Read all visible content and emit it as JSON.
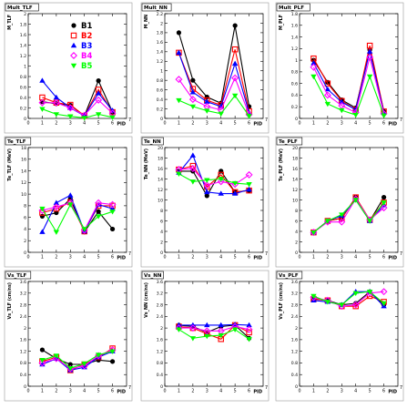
{
  "chart_data": [
    {
      "type": "line",
      "title": "Mult_TLF",
      "ylabel": "M_TLF",
      "xlabel": "PID",
      "xlim": [
        0,
        7
      ],
      "ylim": [
        0,
        2
      ],
      "xticks": [
        0,
        1,
        2,
        3,
        4,
        5,
        6
      ],
      "yticks": [
        0,
        0.2,
        0.4,
        0.6,
        0.8,
        1,
        1.2,
        1.4,
        1.6,
        1.8,
        2
      ],
      "ytick_labels": [
        "0",
        "0.2",
        "0.4",
        "0.6",
        "0.8",
        "1",
        "1.2",
        "1.4",
        "1.6",
        "1.8",
        "2"
      ],
      "x": [
        1,
        2,
        3,
        4,
        5,
        6
      ],
      "legend": "top-right",
      "series": [
        {
          "name": "B1",
          "values": [
            0.32,
            0.28,
            0.25,
            0.05,
            0.72,
            0.12
          ]
        },
        {
          "name": "B2",
          "values": [
            0.4,
            0.3,
            0.26,
            0.05,
            0.55,
            0.12
          ]
        },
        {
          "name": "B3",
          "values": [
            0.72,
            0.4,
            0.2,
            0.05,
            0.48,
            0.15
          ]
        },
        {
          "name": "B4",
          "values": [
            0.3,
            0.3,
            0.2,
            0.06,
            0.35,
            0.1
          ]
        },
        {
          "name": "B5",
          "values": [
            0.18,
            0.08,
            0.04,
            0.01,
            0.08,
            0.02
          ]
        }
      ]
    },
    {
      "type": "line",
      "title": "Mult_NN",
      "ylabel": "M_NN",
      "xlabel": "PID",
      "xlim": [
        0,
        7
      ],
      "ylim": [
        0,
        2.2
      ],
      "xticks": [
        0,
        1,
        2,
        3,
        4,
        5,
        6
      ],
      "yticks": [
        0,
        0.2,
        0.4,
        0.6,
        0.8,
        1,
        1.2,
        1.4,
        1.6,
        1.8,
        2,
        2.2
      ],
      "ytick_labels": [
        "0",
        "0.2",
        "0.4",
        "0.6",
        "0.8",
        "1",
        "1.2",
        "1.4",
        "1.6",
        "1.8",
        "2",
        "2.2"
      ],
      "x": [
        1,
        2,
        3,
        4,
        5,
        6
      ],
      "series": [
        {
          "name": "B1",
          "values": [
            1.8,
            0.8,
            0.45,
            0.32,
            1.95,
            0.25
          ]
        },
        {
          "name": "B2",
          "values": [
            1.38,
            0.62,
            0.38,
            0.28,
            1.45,
            0.15
          ]
        },
        {
          "name": "B3",
          "values": [
            1.38,
            0.55,
            0.35,
            0.25,
            1.15,
            0.12
          ]
        },
        {
          "name": "B4",
          "values": [
            0.82,
            0.4,
            0.25,
            0.18,
            0.85,
            0.08
          ]
        },
        {
          "name": "B5",
          "values": [
            0.38,
            0.25,
            0.16,
            0.1,
            0.48,
            0.05
          ]
        }
      ]
    },
    {
      "type": "line",
      "title": "Mult_PLF",
      "ylabel": "M_PLF",
      "xlabel": "PID",
      "xlim": [
        0,
        7
      ],
      "ylim": [
        0,
        1.8
      ],
      "xticks": [
        0,
        1,
        2,
        3,
        4,
        5,
        6
      ],
      "yticks": [
        0,
        0.2,
        0.4,
        0.6,
        0.8,
        1,
        1.2,
        1.4,
        1.6,
        1.8
      ],
      "ytick_labels": [
        "0",
        "0.2",
        "0.4",
        "0.6",
        "0.8",
        "1",
        "1.2",
        "1.4",
        "1.6",
        "1.8"
      ],
      "x": [
        1,
        2,
        3,
        4,
        5,
        6
      ],
      "series": [
        {
          "name": "B1",
          "values": [
            1.0,
            0.62,
            0.32,
            0.18,
            1.18,
            0.12
          ]
        },
        {
          "name": "B2",
          "values": [
            1.03,
            0.6,
            0.3,
            0.15,
            1.25,
            0.12
          ]
        },
        {
          "name": "B3",
          "values": [
            0.95,
            0.5,
            0.28,
            0.15,
            1.15,
            0.1
          ]
        },
        {
          "name": "B4",
          "values": [
            0.88,
            0.4,
            0.22,
            0.1,
            1.05,
            0.08
          ]
        },
        {
          "name": "B5",
          "values": [
            0.72,
            0.25,
            0.14,
            0.06,
            0.72,
            0.05
          ]
        }
      ]
    },
    {
      "type": "line",
      "title": "Te_TLF",
      "ylabel": "Te_TLF (MeV)",
      "xlabel": "PID",
      "xlim": [
        0,
        7
      ],
      "ylim": [
        0,
        18
      ],
      "xticks": [
        0,
        1,
        2,
        3,
        4,
        5,
        6
      ],
      "yticks": [
        0,
        2,
        4,
        6,
        8,
        10,
        12,
        14,
        16,
        18
      ],
      "ytick_labels": [
        "0",
        "2",
        "4",
        "6",
        "8",
        "10",
        "12",
        "14",
        "16",
        "18"
      ],
      "x": [
        1,
        2,
        3,
        4,
        5,
        6
      ],
      "series": [
        {
          "name": "B1",
          "values": [
            6.2,
            6.8,
            9.2,
            3.5,
            7.0,
            4.0
          ]
        },
        {
          "name": "B2",
          "values": [
            6.8,
            7.5,
            8.6,
            3.6,
            8.0,
            8.0
          ]
        },
        {
          "name": "B3",
          "values": [
            3.5,
            8.5,
            9.8,
            3.6,
            8.2,
            7.5
          ]
        },
        {
          "name": "B4",
          "values": [
            7.2,
            7.8,
            8.5,
            3.8,
            8.5,
            8.2
          ]
        },
        {
          "name": "B5",
          "values": [
            7.5,
            3.5,
            8.2,
            4.0,
            6.2,
            7.0
          ]
        }
      ]
    },
    {
      "type": "line",
      "title": "Te_NN",
      "ylabel": "Te_NN (MeV)",
      "xlabel": "PID",
      "xlim": [
        0,
        7
      ],
      "ylim": [
        0,
        20
      ],
      "xticks": [
        0,
        1,
        2,
        3,
        4,
        5,
        6
      ],
      "yticks": [
        0,
        2,
        4,
        6,
        8,
        10,
        12,
        14,
        16,
        18,
        20
      ],
      "ytick_labels": [
        "0",
        "2",
        "4",
        "6",
        "8",
        "10",
        "12",
        "14",
        "16",
        "18",
        "20"
      ],
      "x": [
        1,
        2,
        3,
        4,
        5,
        6
      ],
      "series": [
        {
          "name": "B1",
          "values": [
            15.5,
            15.5,
            10.8,
            15.5,
            11.5,
            11.8
          ]
        },
        {
          "name": "B2",
          "values": [
            15.8,
            16.5,
            12.5,
            14.8,
            11.5,
            11.8
          ]
        },
        {
          "name": "B3",
          "values": [
            15.2,
            18.5,
            11.5,
            11.2,
            11.2,
            12.0
          ]
        },
        {
          "name": "B4",
          "values": [
            15.8,
            16.0,
            12.8,
            13.5,
            13.0,
            14.8
          ]
        },
        {
          "name": "B5",
          "values": [
            15.0,
            13.5,
            13.8,
            14.0,
            13.2,
            13.0
          ]
        }
      ]
    },
    {
      "type": "line",
      "title": "Te_PLF",
      "ylabel": "Te_PLF (MeV)",
      "xlabel": "PID",
      "xlim": [
        0,
        7
      ],
      "ylim": [
        0,
        20
      ],
      "xticks": [
        0,
        1,
        2,
        3,
        4,
        5,
        6
      ],
      "yticks": [
        0,
        2,
        4,
        6,
        8,
        10,
        12,
        14,
        16,
        18,
        20
      ],
      "ytick_labels": [
        "0",
        "2",
        "4",
        "6",
        "8",
        "10",
        "12",
        "14",
        "16",
        "18",
        "20"
      ],
      "x": [
        1,
        2,
        3,
        4,
        5,
        6
      ],
      "series": [
        {
          "name": "B1",
          "values": [
            3.8,
            6.0,
            6.5,
            10.5,
            6.0,
            10.5
          ]
        },
        {
          "name": "B2",
          "values": [
            3.8,
            6.0,
            6.5,
            10.5,
            6.2,
            9.5
          ]
        },
        {
          "name": "B3",
          "values": [
            3.8,
            6.0,
            7.0,
            10.0,
            6.0,
            9.0
          ]
        },
        {
          "name": "B4",
          "values": [
            3.8,
            5.8,
            5.8,
            10.2,
            6.2,
            8.5
          ]
        },
        {
          "name": "B5",
          "values": [
            3.8,
            6.0,
            7.2,
            10.0,
            6.0,
            9.5
          ]
        }
      ]
    },
    {
      "type": "line",
      "title": "Vs_TLF",
      "ylabel": "Vs_TLF (cm/ns)",
      "xlabel": "PID",
      "xlim": [
        0,
        7
      ],
      "ylim": [
        0,
        3.6
      ],
      "xticks": [
        0,
        1,
        2,
        3,
        4,
        5,
        6
      ],
      "yticks": [
        0,
        0.4,
        0.8,
        1.2,
        1.6,
        2,
        2.4,
        2.8,
        3.2,
        3.6
      ],
      "ytick_labels": [
        "0",
        "0.4",
        "0.8",
        "1.2",
        "1.6",
        "2",
        "2.4",
        "2.8",
        "3.2",
        "3.6"
      ],
      "x": [
        1,
        2,
        3,
        4,
        5,
        6
      ],
      "series": [
        {
          "name": "B1",
          "values": [
            1.25,
            0.95,
            0.75,
            0.75,
            0.9,
            0.85
          ]
        },
        {
          "name": "B2",
          "values": [
            0.85,
            1.0,
            0.55,
            0.75,
            1.0,
            1.3
          ]
        },
        {
          "name": "B3",
          "values": [
            0.75,
            0.95,
            0.55,
            0.65,
            1.0,
            1.2
          ]
        },
        {
          "name": "B4",
          "values": [
            0.8,
            0.95,
            0.6,
            0.7,
            1.05,
            1.25
          ]
        },
        {
          "name": "B5",
          "values": [
            0.9,
            1.05,
            0.62,
            0.78,
            1.08,
            1.2
          ]
        }
      ]
    },
    {
      "type": "line",
      "title": "Vs_NN",
      "ylabel": "Vs_NN (cm/ns)",
      "xlabel": "PID",
      "xlim": [
        0,
        7
      ],
      "ylim": [
        0,
        3.6
      ],
      "xticks": [
        0,
        1,
        2,
        3,
        4,
        5,
        6
      ],
      "yticks": [
        0,
        0.4,
        0.8,
        1.2,
        1.6,
        2,
        2.4,
        2.8,
        3.2,
        3.6
      ],
      "ytick_labels": [
        "0",
        "0.4",
        "0.8",
        "1.2",
        "1.6",
        "2",
        "2.4",
        "2.8",
        "3.2",
        "3.6"
      ],
      "x": [
        1,
        2,
        3,
        4,
        5,
        6
      ],
      "series": [
        {
          "name": "B1",
          "values": [
            2.1,
            2.05,
            1.85,
            2.05,
            2.1,
            1.65
          ]
        },
        {
          "name": "B2",
          "values": [
            2.05,
            2.0,
            1.8,
            1.62,
            2.1,
            1.85
          ]
        },
        {
          "name": "B3",
          "values": [
            2.1,
            2.1,
            2.1,
            2.1,
            2.12,
            2.1
          ]
        },
        {
          "name": "B4",
          "values": [
            2.0,
            2.0,
            1.9,
            1.9,
            2.05,
            1.95
          ]
        },
        {
          "name": "B5",
          "values": [
            1.95,
            1.65,
            1.72,
            1.75,
            1.95,
            1.62
          ]
        }
      ]
    },
    {
      "type": "line",
      "title": "Vs_PLF",
      "ylabel": "Vs_PLF (cm/ns)",
      "xlabel": "PID",
      "xlim": [
        0,
        7
      ],
      "ylim": [
        0,
        3.6
      ],
      "xticks": [
        0,
        1,
        2,
        3,
        4,
        5,
        6
      ],
      "yticks": [
        0,
        0.4,
        0.8,
        1.2,
        1.6,
        2,
        2.4,
        2.8,
        3.2,
        3.6
      ],
      "ytick_labels": [
        "0",
        "0.4",
        "0.8",
        "1.2",
        "1.6",
        "2",
        "2.4",
        "2.8",
        "3.2",
        "3.6"
      ],
      "x": [
        1,
        2,
        3,
        4,
        5,
        6
      ],
      "series": [
        {
          "name": "B1",
          "values": [
            3.0,
            2.95,
            2.8,
            2.85,
            3.25,
            2.8
          ]
        },
        {
          "name": "B2",
          "values": [
            3.0,
            2.95,
            2.75,
            2.75,
            3.1,
            2.9
          ]
        },
        {
          "name": "B3",
          "values": [
            2.95,
            2.9,
            2.8,
            3.25,
            3.25,
            2.75
          ]
        },
        {
          "name": "B4",
          "values": [
            3.05,
            2.95,
            2.75,
            2.8,
            3.2,
            3.25
          ]
        },
        {
          "name": "B5",
          "values": [
            3.1,
            2.9,
            2.8,
            3.2,
            3.25,
            2.85
          ]
        }
      ]
    }
  ],
  "legend_labels": [
    "B1",
    "B2",
    "B3",
    "B4",
    "B5"
  ],
  "series_colors": [
    "#000000",
    "#ff0000",
    "#0000ff",
    "#ff00ff",
    "#00ff00"
  ],
  "series_markers": [
    "circle",
    "open-square",
    "triangle",
    "open-diamond",
    "triangle-down"
  ]
}
